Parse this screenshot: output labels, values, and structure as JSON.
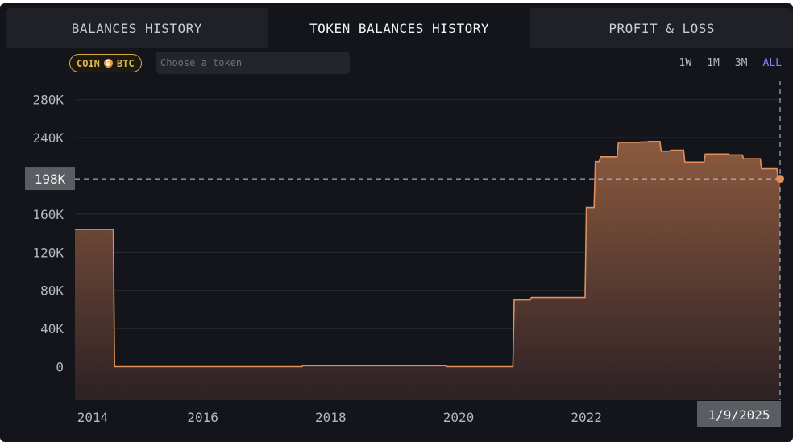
{
  "tabs": [
    {
      "label": "BALANCES HISTORY",
      "active": false
    },
    {
      "label": "TOKEN BALANCES HISTORY",
      "active": true
    },
    {
      "label": "PROFIT & LOSS",
      "active": false
    }
  ],
  "filter": {
    "chip_prefix": "COIN",
    "chip_icon": "bitcoin-icon",
    "chip_symbol": "BTC",
    "token_placeholder": "Choose a token"
  },
  "ranges": [
    {
      "label": "1W",
      "active": false
    },
    {
      "label": "1M",
      "active": false
    },
    {
      "label": "3M",
      "active": false
    },
    {
      "label": "ALL",
      "active": true
    }
  ],
  "colors": {
    "line": "#e0915a",
    "fill_top": "#8c5a3f",
    "fill_bottom": "#2d2124",
    "background": "#13151b",
    "accent": "#8f7cf0"
  },
  "chart_data": {
    "type": "area",
    "step": true,
    "title": "",
    "xlabel": "",
    "ylabel": "",
    "xlim": [
      2014.0,
      2025.03
    ],
    "ylim": [
      -35000,
      300000
    ],
    "yticks": [
      0,
      40000,
      80000,
      120000,
      160000,
      200000,
      240000,
      280000
    ],
    "ytick_labels": [
      "0",
      "40K",
      "80K",
      "120K",
      "160K",
      "200K",
      "240K",
      "280K"
    ],
    "xticks": [
      2014,
      2016,
      2018,
      2020,
      2022
    ],
    "xtick_labels": [
      "2014",
      "2016",
      "2018",
      "2020",
      "2022"
    ],
    "grid": true,
    "series": [
      {
        "x": [
          2014.0,
          2014.6,
          2014.62,
          2017.55,
          2017.57,
          2019.8,
          2019.82,
          2020.85,
          2020.87,
          2021.12,
          2021.14,
          2021.98,
          2022.0,
          2022.12,
          2022.14,
          2022.2,
          2022.22,
          2022.48,
          2022.5,
          2022.83,
          2022.85,
          2022.95,
          2022.97,
          2023.15,
          2023.17,
          2023.3,
          2023.32,
          2023.52,
          2023.54,
          2023.84,
          2023.86,
          2024.22,
          2024.24,
          2024.44,
          2024.46,
          2024.72,
          2024.74,
          2024.98,
          2025.0,
          2025.03
        ],
        "y": [
          144000,
          144000,
          0,
          0,
          1000,
          1000,
          0,
          0,
          70000,
          70000,
          72500,
          72500,
          167000,
          167000,
          215000,
          215000,
          220000,
          220000,
          235000,
          235000,
          235500,
          235500,
          236000,
          236000,
          226000,
          226000,
          227000,
          227000,
          214500,
          214500,
          223000,
          223000,
          222000,
          222000,
          218000,
          218000,
          207500,
          207500,
          197000,
          197000
        ]
      }
    ],
    "crosshair": {
      "y_label": "198K",
      "x_label": "1/9/2025"
    }
  }
}
